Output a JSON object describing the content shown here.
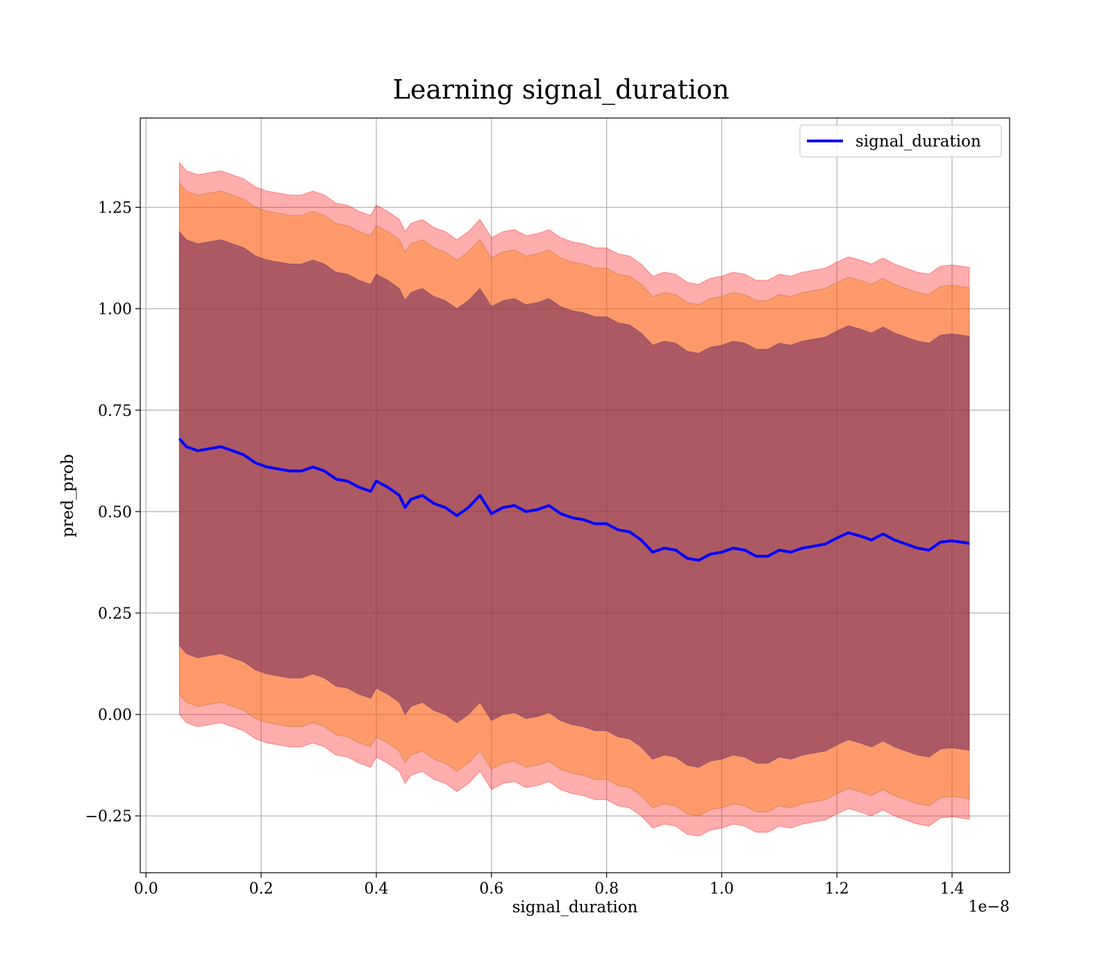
{
  "chart_data": {
    "type": "line",
    "title": "Learning signal_duration",
    "xlabel": "signal_duration",
    "ylabel": "pred_prob",
    "x_offset_text": "1e−8",
    "xlim": [
      -0.01,
      1.5
    ],
    "ylim": [
      -0.39,
      1.47
    ],
    "x_tick_values": [
      0.0,
      0.2,
      0.4,
      0.6,
      0.8,
      1.0,
      1.2,
      1.4
    ],
    "x_tick_labels": [
      "0.0",
      "0.2",
      "0.4",
      "0.6",
      "0.8",
      "1.0",
      "1.2",
      "1.4"
    ],
    "y_tick_values": [
      -0.25,
      0.0,
      0.25,
      0.5,
      0.75,
      1.0,
      1.25
    ],
    "y_tick_labels": [
      "−0.25",
      "0.00",
      "0.25",
      "0.50",
      "0.75",
      "1.00",
      "1.25"
    ],
    "grid": true,
    "legend": {
      "position": "top-right",
      "entries": [
        "signal_duration"
      ]
    },
    "colors": {
      "line": "#0000ff",
      "band_outer": "#ff0000",
      "band_middle": "#ff7f0e",
      "band_inner": "#5b1a5e"
    },
    "series": [
      {
        "name": "signal_duration",
        "x": [
          0.058,
          0.07,
          0.09,
          0.11,
          0.13,
          0.15,
          0.17,
          0.19,
          0.21,
          0.23,
          0.25,
          0.27,
          0.29,
          0.31,
          0.33,
          0.35,
          0.37,
          0.39,
          0.4,
          0.42,
          0.44,
          0.45,
          0.46,
          0.48,
          0.5,
          0.52,
          0.54,
          0.56,
          0.58,
          0.6,
          0.62,
          0.64,
          0.66,
          0.68,
          0.7,
          0.72,
          0.74,
          0.76,
          0.78,
          0.8,
          0.82,
          0.84,
          0.86,
          0.88,
          0.9,
          0.92,
          0.94,
          0.96,
          0.98,
          1.0,
          1.02,
          1.04,
          1.06,
          1.08,
          1.1,
          1.12,
          1.14,
          1.16,
          1.18,
          1.2,
          1.22,
          1.24,
          1.26,
          1.28,
          1.3,
          1.32,
          1.34,
          1.36,
          1.38,
          1.4,
          1.43
        ],
        "y": [
          0.68,
          0.66,
          0.65,
          0.655,
          0.66,
          0.65,
          0.64,
          0.62,
          0.61,
          0.605,
          0.6,
          0.6,
          0.61,
          0.6,
          0.58,
          0.575,
          0.56,
          0.55,
          0.575,
          0.56,
          0.54,
          0.51,
          0.53,
          0.54,
          0.52,
          0.51,
          0.49,
          0.51,
          0.54,
          0.495,
          0.51,
          0.515,
          0.5,
          0.505,
          0.515,
          0.495,
          0.485,
          0.48,
          0.47,
          0.47,
          0.455,
          0.45,
          0.43,
          0.4,
          0.41,
          0.405,
          0.385,
          0.38,
          0.395,
          0.4,
          0.41,
          0.405,
          0.39,
          0.39,
          0.405,
          0.4,
          0.41,
          0.415,
          0.42,
          0.435,
          0.448,
          0.44,
          0.43,
          0.445,
          0.43,
          0.42,
          0.41,
          0.405,
          0.425,
          0.428,
          0.422
        ],
        "bands": {
          "inner_std": [
            0.51,
            0.51,
            0.51,
            0.51,
            0.51,
            0.51,
            0.51,
            0.51,
            0.51,
            0.51,
            0.51,
            0.51,
            0.51,
            0.51,
            0.51,
            0.51,
            0.51,
            0.51,
            0.51,
            0.51,
            0.51,
            0.51,
            0.51,
            0.51,
            0.51,
            0.51,
            0.51,
            0.51,
            0.51,
            0.51,
            0.51,
            0.51,
            0.51,
            0.51,
            0.51,
            0.51,
            0.51,
            0.51,
            0.51,
            0.51,
            0.51,
            0.51,
            0.51,
            0.51,
            0.51,
            0.51,
            0.51,
            0.51,
            0.51,
            0.51,
            0.51,
            0.51,
            0.51,
            0.51,
            0.51,
            0.51,
            0.51,
            0.51,
            0.51,
            0.51,
            0.51,
            0.51,
            0.51,
            0.51,
            0.51,
            0.51,
            0.51,
            0.51,
            0.51,
            0.51,
            0.51
          ],
          "middle_std": [
            0.63,
            0.63,
            0.63,
            0.63,
            0.63,
            0.63,
            0.63,
            0.63,
            0.63,
            0.63,
            0.63,
            0.63,
            0.63,
            0.63,
            0.63,
            0.63,
            0.63,
            0.63,
            0.63,
            0.63,
            0.63,
            0.63,
            0.63,
            0.63,
            0.63,
            0.63,
            0.63,
            0.63,
            0.63,
            0.63,
            0.63,
            0.63,
            0.63,
            0.63,
            0.63,
            0.63,
            0.63,
            0.63,
            0.63,
            0.63,
            0.63,
            0.63,
            0.63,
            0.63,
            0.63,
            0.63,
            0.63,
            0.63,
            0.63,
            0.63,
            0.63,
            0.63,
            0.63,
            0.63,
            0.63,
            0.63,
            0.63,
            0.63,
            0.63,
            0.63,
            0.63,
            0.63,
            0.63,
            0.63,
            0.63,
            0.63,
            0.63,
            0.63,
            0.63,
            0.63,
            0.63
          ],
          "outer_std": [
            0.68,
            0.68,
            0.68,
            0.68,
            0.68,
            0.68,
            0.68,
            0.68,
            0.68,
            0.68,
            0.68,
            0.68,
            0.68,
            0.68,
            0.68,
            0.68,
            0.68,
            0.68,
            0.68,
            0.68,
            0.68,
            0.68,
            0.68,
            0.68,
            0.68,
            0.68,
            0.68,
            0.68,
            0.68,
            0.68,
            0.68,
            0.68,
            0.68,
            0.68,
            0.68,
            0.68,
            0.68,
            0.68,
            0.68,
            0.68,
            0.68,
            0.68,
            0.68,
            0.68,
            0.68,
            0.68,
            0.68,
            0.68,
            0.68,
            0.68,
            0.68,
            0.68,
            0.68,
            0.68,
            0.68,
            0.68,
            0.68,
            0.68,
            0.68,
            0.68,
            0.68,
            0.68,
            0.68,
            0.68,
            0.68,
            0.68,
            0.68,
            0.68,
            0.68,
            0.68,
            0.68
          ]
        }
      }
    ]
  }
}
